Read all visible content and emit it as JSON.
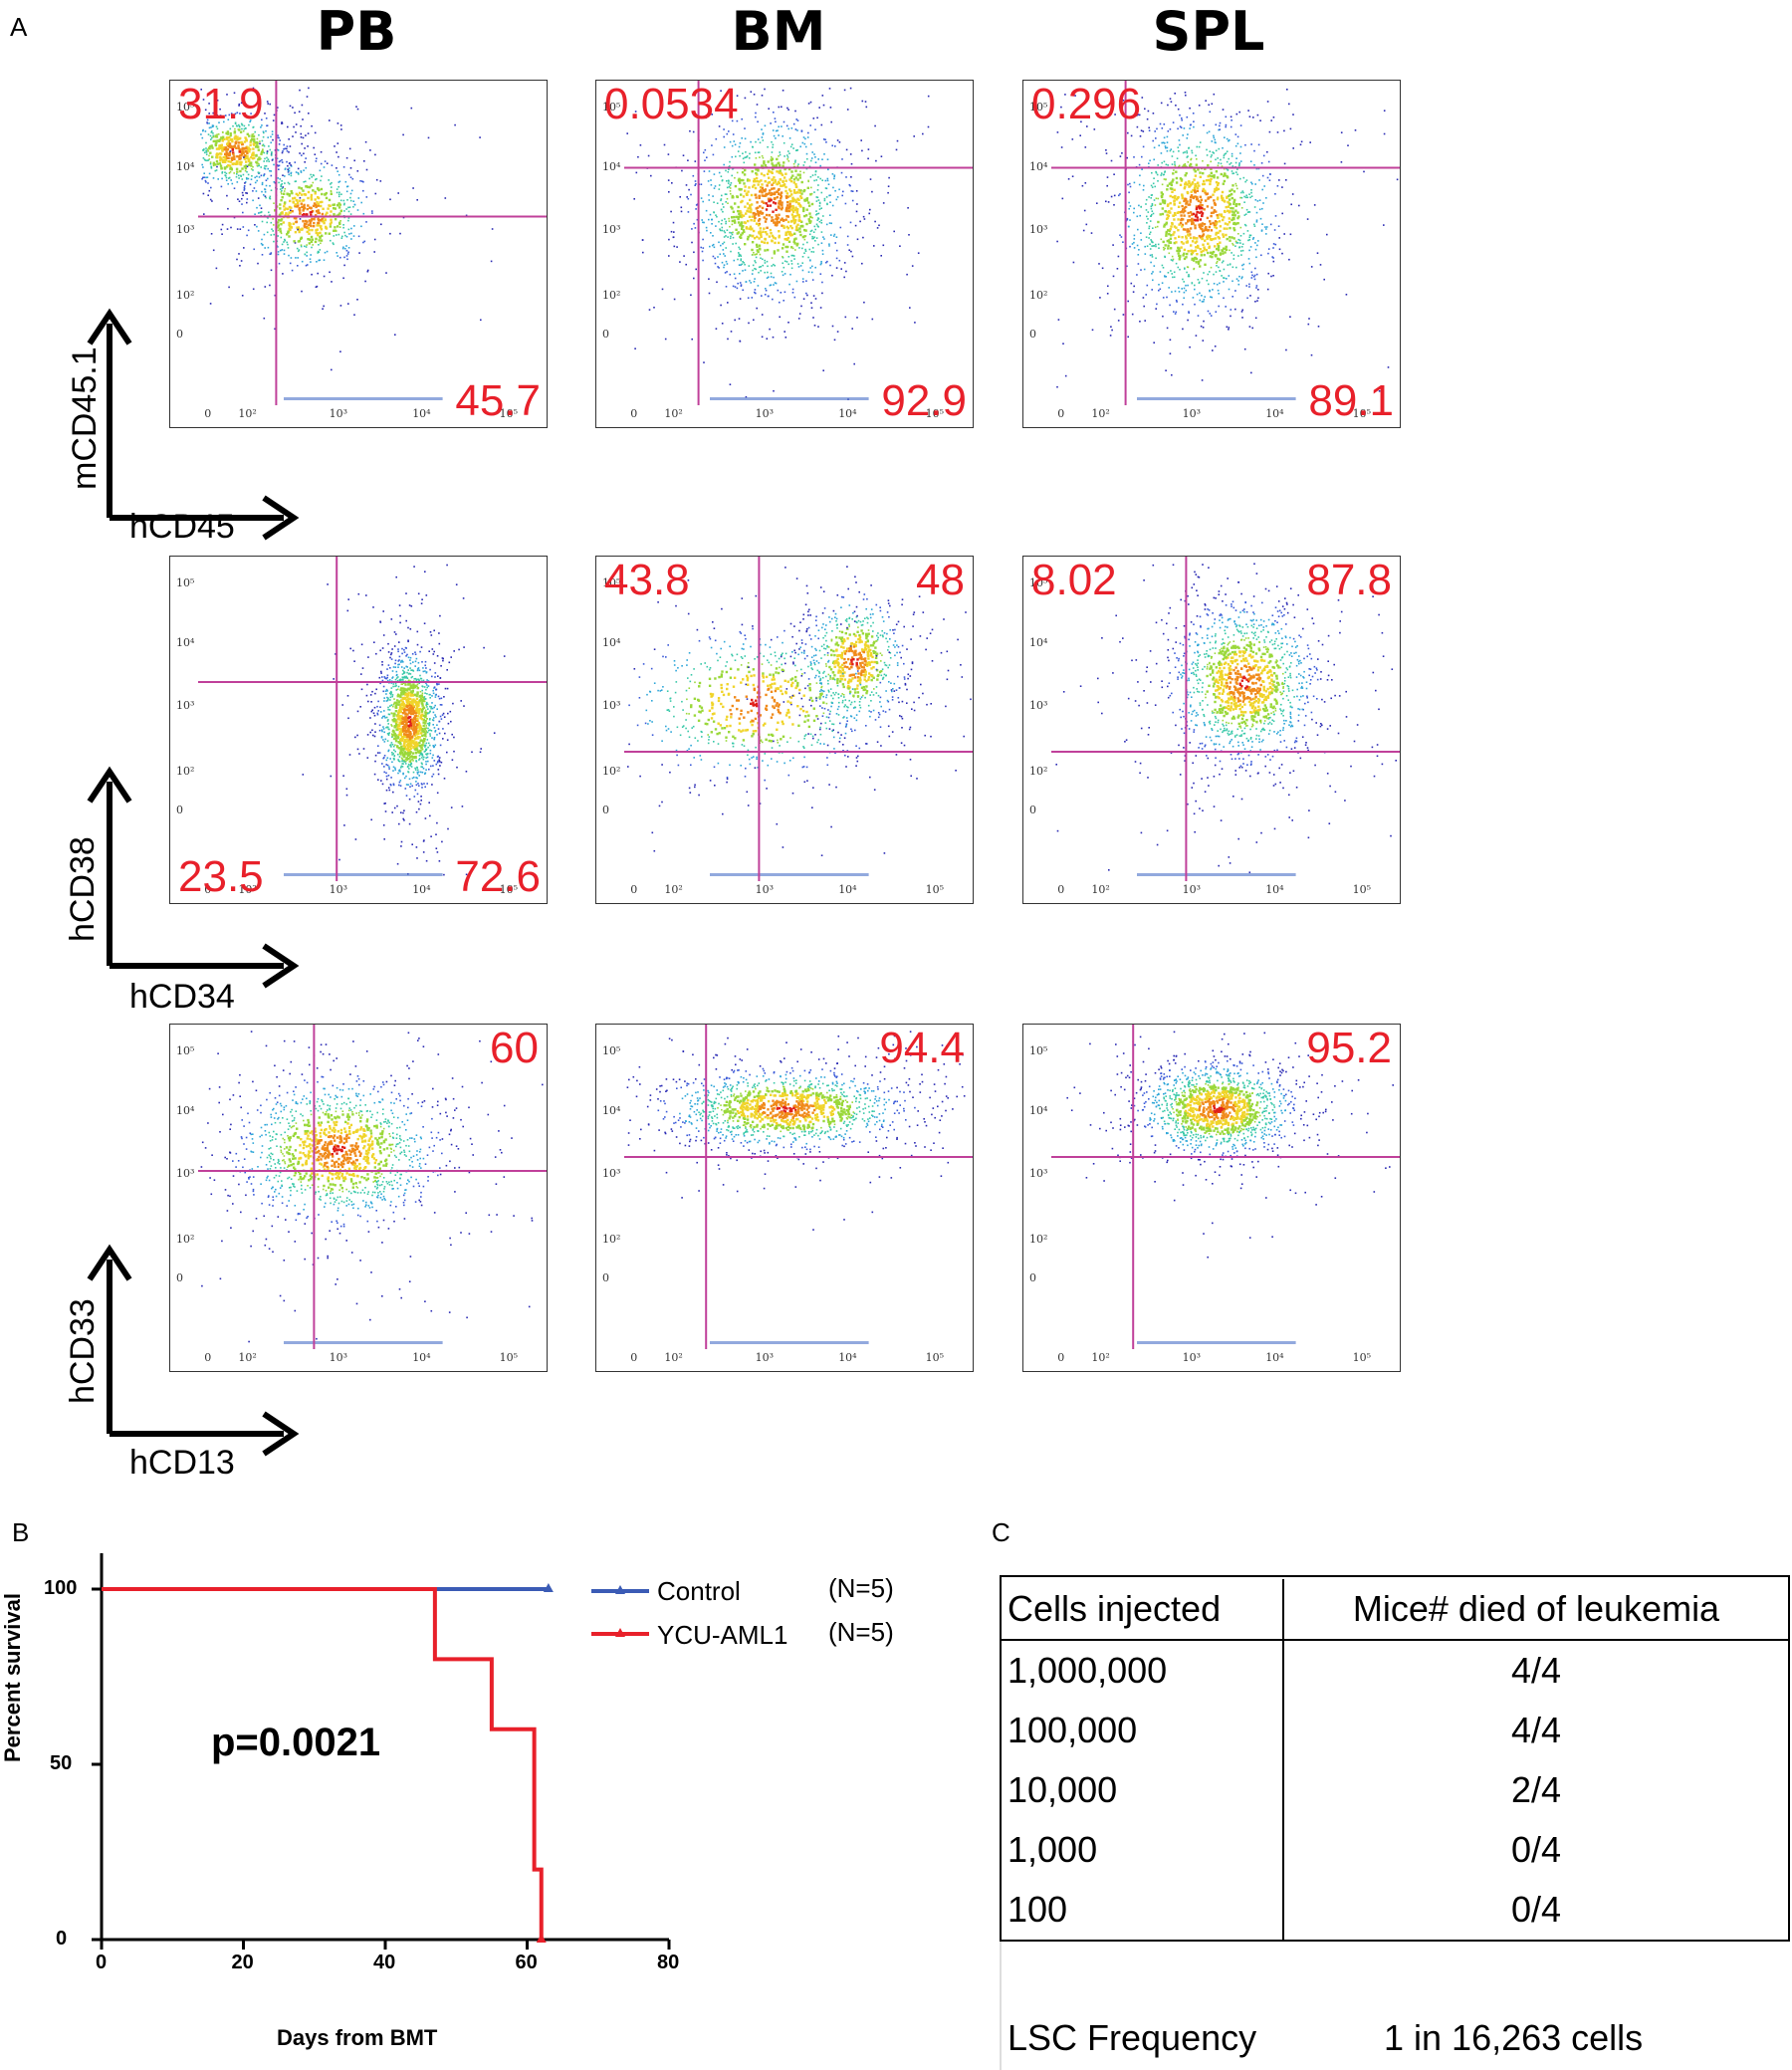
{
  "panel_labels": {
    "a": "A",
    "b": "B",
    "c": "C"
  },
  "columns": [
    "PB",
    "BM",
    "SPL"
  ],
  "flow_rows": [
    {
      "y_label": "mCD45.1",
      "x_label": "hCD45",
      "plots": [
        {
          "name": "pb-cd45",
          "tl": "31.9",
          "tr": "",
          "bl": "",
          "br": "45.7"
        },
        {
          "name": "bm-cd45",
          "tl": "0.0534",
          "tr": "",
          "bl": "",
          "br": "92.9"
        },
        {
          "name": "spl-cd45",
          "tl": "0.296",
          "tr": "",
          "bl": "",
          "br": "89.1"
        }
      ]
    },
    {
      "y_label": "hCD38",
      "x_label": "hCD34",
      "plots": [
        {
          "name": "pb-cd38",
          "tl": "",
          "tr": "",
          "bl": "23.5",
          "br": "72.6"
        },
        {
          "name": "bm-cd38",
          "tl": "43.8",
          "tr": "48",
          "bl": "",
          "br": ""
        },
        {
          "name": "spl-cd38",
          "tl": "8.02",
          "tr": "87.8",
          "bl": "",
          "br": ""
        }
      ]
    },
    {
      "y_label": "hCD33",
      "x_label": "hCD13",
      "plots": [
        {
          "name": "pb-cd33",
          "tl": "",
          "tr": "60",
          "bl": "",
          "br": ""
        },
        {
          "name": "bm-cd33",
          "tl": "",
          "tr": "94.4",
          "bl": "",
          "br": ""
        },
        {
          "name": "spl-cd33",
          "tl": "",
          "tr": "95.2",
          "bl": "",
          "br": ""
        }
      ]
    }
  ],
  "flow_ticks": {
    "y": [
      "10⁵",
      "10⁴",
      "10³",
      "10²",
      "0"
    ],
    "x": [
      "0",
      "10²",
      "10³",
      "10⁴",
      "10⁵"
    ]
  },
  "chart_data": {
    "type": "line",
    "xlabel": "Days from BMT",
    "ylabel": "Percent survival",
    "xlim": [
      0,
      80
    ],
    "ylim": [
      0,
      100
    ],
    "xticks": [
      0,
      20,
      40,
      60,
      80
    ],
    "yticks": [
      0,
      50,
      100
    ],
    "series": [
      {
        "name": "Control",
        "n_label": "(N=5)",
        "color": "#3b5bb5",
        "x": [
          0,
          63
        ],
        "y": [
          100,
          100
        ]
      },
      {
        "name": "YCU-AML1",
        "n_label": "(N=5)",
        "color": "#e8202a",
        "x": [
          0,
          47,
          47,
          55,
          55,
          61,
          61,
          62,
          62
        ],
        "y": [
          100,
          100,
          80,
          80,
          60,
          60,
          20,
          20,
          0
        ]
      }
    ],
    "annotation": "p=0.0021"
  },
  "lsc_table": {
    "headers": [
      "Cells injected",
      "Mice# died of leukemia"
    ],
    "rows": [
      [
        "1,000,000",
        "4/4"
      ],
      [
        "100,000",
        "4/4"
      ],
      [
        "10,000",
        "2/4"
      ],
      [
        "1,000",
        "0/4"
      ],
      [
        "100",
        "0/4"
      ]
    ],
    "frequency_label": "LSC Frequency",
    "frequency_value": "1 in 16,263 cells"
  }
}
